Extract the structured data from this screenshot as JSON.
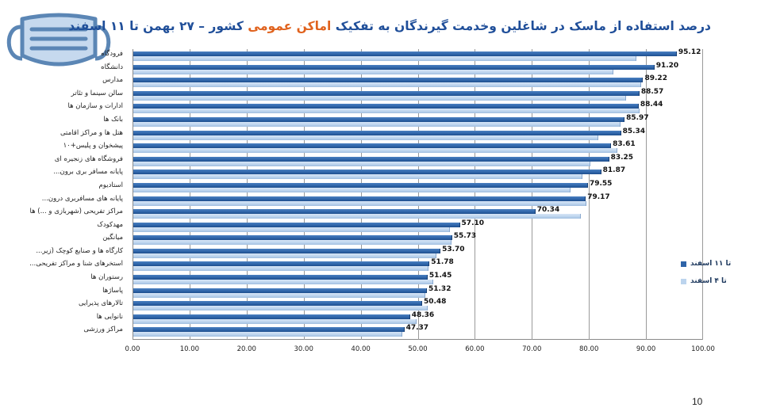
{
  "title": {
    "part1": "درصد استفاده از ماسک در شاغلین وخدمت گیرندگان به تفکیک",
    "part2": "اماکن عمومی",
    "part3": "کشور  – ۲۷ بهمن تا ۱۱ اسفند"
  },
  "icon": "face-mask-icon",
  "page_number": "10",
  "colors": {
    "series_dark": "#2e64a8",
    "series_light": "#bcd4ee",
    "title_blue": "#1f4e99",
    "title_orange": "#e0621d"
  },
  "legend": [
    {
      "label": "تا ۱۱ اسفند",
      "color": "#2e64a8"
    },
    {
      "label": "تا ۴ اسفند",
      "color": "#bcd4ee"
    }
  ],
  "xticks": [
    "0.00",
    "10.00",
    "20.00",
    "30.00",
    "40.00",
    "50.00",
    "60.00",
    "70.00",
    "80.00",
    "90.00",
    "100.00"
  ],
  "chart_data": {
    "type": "bar",
    "orientation": "horizontal",
    "title": "درصد استفاده از ماسک در شاغلین وخدمت گیرندگان به تفکیک اماکن عمومی کشور – ۲۷ بهمن تا ۱۱ اسفند",
    "xlabel": "",
    "ylabel": "",
    "xlim": [
      0,
      100
    ],
    "grid": true,
    "legend_position": "right",
    "categories": [
      "فرودگاه",
      "دانشگاه",
      "مدارس",
      "سالن سینما و تئاتر",
      "ادارات و سازمان ها",
      "بانک ها",
      "هتل ها و مراکز اقامتی",
      "پیشخوان و پلیس+۱۰",
      "فروشگاه های زنجیره ای",
      "پایانه مسافر بری برون...",
      "استادیوم",
      "پایانه های مسافربری درون...",
      "مراکز تفریحی (شهربازی و ...) ها",
      "مهدکودک",
      "میانگین",
      "کارگاه ها و صنایع کوچک (زیر...",
      "استخرهای شنا و مراکز تفریحی...",
      "رستوران ها",
      "پاساژها",
      "تالارهای پذیرایی",
      "نانوایی ها",
      "مراکز ورزشی"
    ],
    "series": [
      {
        "name": "تا ۱۱ اسفند",
        "values": [
          95.12,
          91.2,
          89.22,
          88.57,
          88.44,
          85.97,
          85.34,
          83.61,
          83.25,
          81.87,
          79.55,
          79.17,
          70.34,
          57.1,
          55.73,
          53.7,
          51.78,
          51.45,
          51.32,
          50.48,
          48.36,
          47.37
        ],
        "labels": [
          "95.12",
          "91.20",
          "89.22",
          "88.57",
          "88.44",
          "85.97",
          "85.34",
          "83.61",
          "83.25",
          "81.87",
          "79.55",
          "79.17",
          "70.34",
          "57.10",
          "55.73",
          "53.70",
          "51.78",
          "51.45",
          "51.32",
          "50.48",
          "48.36",
          "47.37"
        ]
      },
      {
        "name": "تا ۴ اسفند",
        "values": [
          88.0,
          84.0,
          88.9,
          86.2,
          88.6,
          85.3,
          81.4,
          84.7,
          80.0,
          78.6,
          76.5,
          79.3,
          78.3,
          55.3,
          55.6,
          53.0,
          51.6,
          52.4,
          51.0,
          51.5,
          49.5,
          47.0
        ]
      }
    ]
  }
}
